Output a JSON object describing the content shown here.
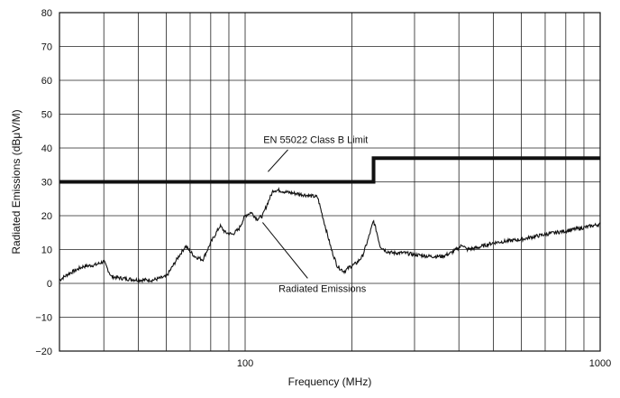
{
  "chart_data": {
    "type": "line",
    "xlabel": "Frequency (MHz)",
    "ylabel": "Radiated Emissions (dBμV/M)",
    "x_scale": "log",
    "xlim": [
      30,
      1000
    ],
    "ylim": [
      -20,
      80
    ],
    "x_tick_labels": [
      {
        "value": 100,
        "label": "100"
      },
      {
        "value": 1000,
        "label": "1000"
      }
    ],
    "y_ticks": [
      -20,
      -10,
      0,
      10,
      20,
      30,
      40,
      50,
      60,
      70,
      80
    ],
    "grid": true,
    "series": [
      {
        "name": "EN 55022 Class B Limit",
        "color": "#111111",
        "x": [
          30,
          230,
          230,
          1000
        ],
        "y": [
          30,
          30,
          37,
          37
        ]
      },
      {
        "name": "Radiated Emissions",
        "color": "#111111",
        "x": [
          30,
          32,
          35,
          38,
          40,
          42,
          45,
          50,
          55,
          60,
          65,
          68,
          72,
          76,
          80,
          85,
          88,
          92,
          96,
          100,
          104,
          108,
          112,
          116,
          120,
          125,
          130,
          140,
          150,
          160,
          168,
          175,
          182,
          190,
          198,
          206,
          214,
          222,
          230,
          235,
          240,
          250,
          260,
          280,
          300,
          330,
          360,
          380,
          400,
          410,
          420,
          450,
          500,
          600,
          700,
          800,
          900,
          1000
        ],
        "y": [
          1,
          3,
          5,
          5.5,
          6.5,
          2,
          1.5,
          1,
          1,
          2,
          8,
          11,
          8,
          7,
          12,
          17,
          15,
          14.5,
          16,
          20,
          21,
          19,
          20,
          24,
          27.5,
          27.5,
          27,
          26.5,
          26,
          25.5,
          17,
          10,
          5,
          3.5,
          5,
          6,
          8,
          13,
          18.5,
          15,
          11,
          9.5,
          9,
          9,
          8.5,
          8,
          8,
          9,
          10.5,
          11.5,
          10,
          10.5,
          12,
          13,
          14.5,
          15.5,
          16.5,
          17.5
        ]
      }
    ],
    "annotations": [
      {
        "text": "EN 55022 Class B Limit",
        "x": 158,
        "y": 42.5
      },
      {
        "text": "Radiated Emissions",
        "x": 165,
        "y": -1.5
      }
    ]
  }
}
